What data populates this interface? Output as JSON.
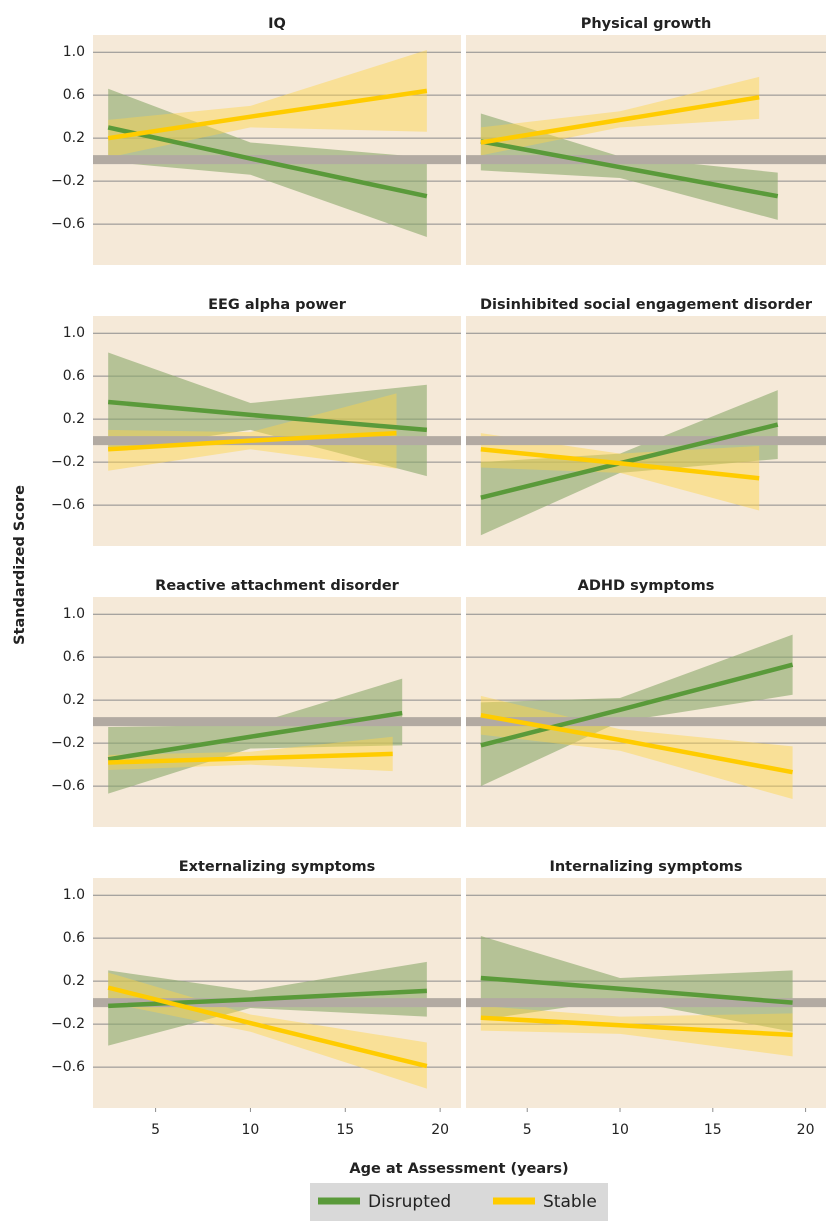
{
  "x_label": "Age at Assessment (years)",
  "y_label": "Standardized Score",
  "chart_data": [
    {
      "type": "line",
      "title": "IQ",
      "xlim": [
        1.7,
        21.1
      ],
      "ylim": [
        -0.98,
        1.16
      ],
      "yticks": [
        {
          "value": 1.0,
          "label": "1.0"
        },
        0.6,
        0.2,
        {
          "value": -0.2,
          "label": "−0.2"
        },
        {
          "value": -0.6,
          "label": "−0.6"
        }
      ],
      "reference_line": 0,
      "series": [
        {
          "name": "Disrupted",
          "color": "#5a9a3a",
          "x": [
            2.5,
            10,
            19.3
          ],
          "values": [
            0.3,
            0.01,
            -0.34
          ],
          "lower": [
            -0.02,
            -0.14,
            -0.72
          ],
          "upper": [
            0.66,
            0.16,
            0.02
          ]
        },
        {
          "name": "Stable",
          "color": "#ffcc00",
          "x": [
            2.5,
            10,
            19.3
          ],
          "values": [
            0.2,
            0.4,
            0.64
          ],
          "lower": [
            0.02,
            0.3,
            0.26
          ],
          "upper": [
            0.37,
            0.5,
            1.02
          ]
        }
      ]
    },
    {
      "type": "line",
      "title": "Physical growth",
      "xlim": [
        1.7,
        21.1
      ],
      "ylim": [
        -0.98,
        1.16
      ],
      "yticks": [
        {
          "value": 1.0,
          "label": "1.0"
        },
        0.6,
        0.2,
        {
          "value": -0.2,
          "label": "−0.2"
        },
        {
          "value": -0.6,
          "label": "−0.6"
        }
      ],
      "reference_line": 0,
      "series": [
        {
          "name": "Disrupted",
          "color": "#5a9a3a",
          "x": [
            2.5,
            10,
            18.5
          ],
          "values": [
            0.17,
            -0.07,
            -0.34
          ],
          "lower": [
            -0.1,
            -0.17,
            -0.56
          ],
          "upper": [
            0.43,
            0.03,
            -0.12
          ]
        },
        {
          "name": "Stable",
          "color": "#ffcc00",
          "x": [
            2.5,
            10,
            17.5
          ],
          "values": [
            0.16,
            0.37,
            0.58
          ],
          "lower": [
            0.04,
            0.3,
            0.38
          ],
          "upper": [
            0.3,
            0.45,
            0.77
          ]
        }
      ]
    },
    {
      "type": "line",
      "title": "EEG alpha power",
      "xlim": [
        1.7,
        21.1
      ],
      "ylim": [
        -0.98,
        1.16
      ],
      "yticks": [
        {
          "value": 1.0,
          "label": "1.0"
        },
        0.6,
        0.2,
        {
          "value": -0.2,
          "label": "−0.2"
        },
        {
          "value": -0.6,
          "label": "−0.6"
        }
      ],
      "reference_line": 0,
      "series": [
        {
          "name": "Disrupted",
          "color": "#5a9a3a",
          "x": [
            2.5,
            10,
            19.3
          ],
          "values": [
            0.36,
            0.24,
            0.1
          ],
          "lower": [
            -0.1,
            0.1,
            -0.33
          ],
          "upper": [
            0.82,
            0.35,
            0.52
          ]
        },
        {
          "name": "Stable",
          "color": "#ffcc00",
          "x": [
            2.5,
            10,
            17.7
          ],
          "values": [
            -0.08,
            0.0,
            0.07
          ],
          "lower": [
            -0.28,
            -0.08,
            -0.26
          ],
          "upper": [
            0.1,
            0.08,
            0.44
          ]
        }
      ]
    },
    {
      "type": "line",
      "title": "Disinhibited social engagement disorder",
      "xlim": [
        1.7,
        21.1
      ],
      "ylim": [
        -0.98,
        1.16
      ],
      "yticks": [
        {
          "value": 1.0,
          "label": "1.0"
        },
        0.6,
        0.2,
        {
          "value": -0.2,
          "label": "−0.2"
        },
        {
          "value": -0.6,
          "label": "−0.6"
        }
      ],
      "reference_line": 0,
      "series": [
        {
          "name": "Disrupted",
          "color": "#5a9a3a",
          "x": [
            2.5,
            10,
            18.5
          ],
          "values": [
            -0.53,
            -0.21,
            0.15
          ],
          "lower": [
            -0.88,
            -0.3,
            -0.17
          ],
          "upper": [
            -0.2,
            -0.12,
            0.47
          ]
        },
        {
          "name": "Stable",
          "color": "#ffcc00",
          "x": [
            2.5,
            10,
            17.5
          ],
          "values": [
            -0.08,
            -0.21,
            -0.35
          ],
          "lower": [
            -0.25,
            -0.3,
            -0.65
          ],
          "upper": [
            0.07,
            -0.12,
            -0.05
          ]
        }
      ]
    },
    {
      "type": "line",
      "title": "Reactive attachment disorder",
      "xlim": [
        1.7,
        21.1
      ],
      "ylim": [
        -0.98,
        1.16
      ],
      "yticks": [
        {
          "value": 1.0,
          "label": "1.0"
        },
        0.6,
        0.2,
        {
          "value": -0.2,
          "label": "−0.2"
        },
        {
          "value": -0.6,
          "label": "−0.6"
        }
      ],
      "reference_line": 0,
      "series": [
        {
          "name": "Disrupted",
          "color": "#5a9a3a",
          "x": [
            2.5,
            10,
            18
          ],
          "values": [
            -0.35,
            -0.14,
            0.08
          ],
          "lower": [
            -0.67,
            -0.25,
            -0.22
          ],
          "upper": [
            -0.05,
            -0.03,
            0.4
          ]
        },
        {
          "name": "Stable",
          "color": "#ffcc00",
          "x": [
            2.5,
            10,
            17.5
          ],
          "values": [
            -0.38,
            -0.34,
            -0.3
          ],
          "lower": [
            -0.45,
            -0.4,
            -0.46
          ],
          "upper": [
            -0.31,
            -0.28,
            -0.14
          ]
        }
      ]
    },
    {
      "type": "line",
      "title": "ADHD symptoms",
      "xlim": [
        1.7,
        21.1
      ],
      "ylim": [
        -0.98,
        1.16
      ],
      "yticks": [
        {
          "value": 1.0,
          "label": "1.0"
        },
        0.6,
        0.2,
        {
          "value": -0.2,
          "label": "−0.2"
        },
        {
          "value": -0.6,
          "label": "−0.6"
        }
      ],
      "reference_line": 0,
      "series": [
        {
          "name": "Disrupted",
          "color": "#5a9a3a",
          "x": [
            2.5,
            10,
            19.3
          ],
          "values": [
            -0.22,
            0.11,
            0.53
          ],
          "lower": [
            -0.6,
            0.0,
            0.25
          ],
          "upper": [
            0.18,
            0.22,
            0.81
          ]
        },
        {
          "name": "Stable",
          "color": "#ffcc00",
          "x": [
            2.5,
            10,
            19.3
          ],
          "values": [
            0.06,
            -0.17,
            -0.47
          ],
          "lower": [
            -0.12,
            -0.27,
            -0.72
          ],
          "upper": [
            0.24,
            -0.07,
            -0.23
          ]
        }
      ]
    },
    {
      "type": "line",
      "title": "Externalizing symptoms",
      "xlim": [
        1.7,
        21.1
      ],
      "ylim": [
        -0.98,
        1.16
      ],
      "yticks": [
        {
          "value": 1.0,
          "label": "1.0"
        },
        0.6,
        0.2,
        {
          "value": -0.2,
          "label": "−0.2"
        },
        {
          "value": -0.6,
          "label": "−0.6"
        }
      ],
      "reference_line": 0,
      "xticks": [
        5,
        10,
        15,
        20
      ],
      "series": [
        {
          "name": "Disrupted",
          "color": "#5a9a3a",
          "x": [
            2.5,
            10,
            19.3
          ],
          "values": [
            -0.03,
            0.03,
            0.11
          ],
          "lower": [
            -0.4,
            -0.05,
            -0.13
          ],
          "upper": [
            0.3,
            0.11,
            0.38
          ]
        },
        {
          "name": "Stable",
          "color": "#ffcc00",
          "x": [
            2.5,
            10,
            19.3
          ],
          "values": [
            0.14,
            -0.19,
            -0.59
          ],
          "lower": [
            0.0,
            -0.27,
            -0.8
          ],
          "upper": [
            0.28,
            -0.11,
            -0.37
          ]
        }
      ]
    },
    {
      "type": "line",
      "title": "Internalizing symptoms",
      "xlim": [
        1.7,
        21.1
      ],
      "ylim": [
        -0.98,
        1.16
      ],
      "yticks": [
        {
          "value": 1.0,
          "label": "1.0"
        },
        0.6,
        0.2,
        {
          "value": -0.2,
          "label": "−0.2"
        },
        {
          "value": -0.6,
          "label": "−0.6"
        }
      ],
      "reference_line": 0,
      "xticks": [
        5,
        10,
        15,
        20
      ],
      "series": [
        {
          "name": "Disrupted",
          "color": "#5a9a3a",
          "x": [
            2.5,
            10,
            19.3
          ],
          "values": [
            0.23,
            0.13,
            0.0
          ],
          "lower": [
            -0.16,
            0.03,
            -0.27
          ],
          "upper": [
            0.62,
            0.23,
            0.3
          ]
        },
        {
          "name": "Stable",
          "color": "#ffcc00",
          "x": [
            2.5,
            10,
            19.3
          ],
          "values": [
            -0.14,
            -0.21,
            -0.3
          ],
          "lower": [
            -0.26,
            -0.29,
            -0.5
          ],
          "upper": [
            -0.03,
            -0.13,
            -0.1
          ]
        }
      ]
    }
  ]
}
